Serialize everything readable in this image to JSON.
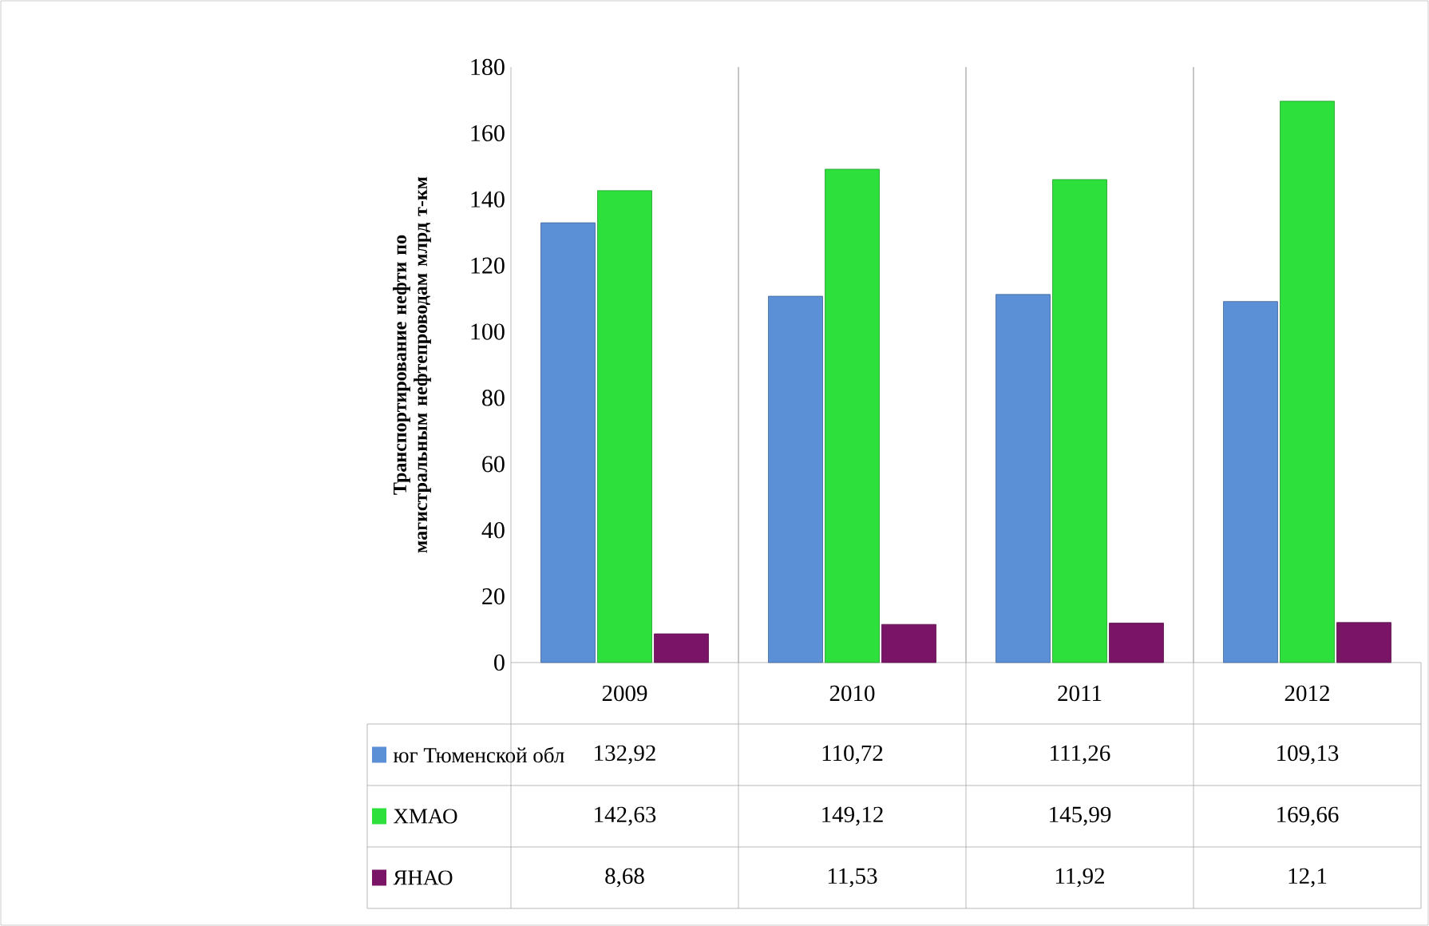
{
  "chart_data": {
    "type": "bar",
    "ylabel": "Транспортирование нефти по магистральным нефтепроводам  млрд т-км",
    "categories": [
      "2009",
      "2010",
      "2011",
      "2012"
    ],
    "series": [
      {
        "name": "юг Тюменской обл",
        "color": "#5b8fd6",
        "values": [
          132.92,
          110.72,
          111.26,
          109.13
        ],
        "value_labels": [
          "132,92",
          "110,72",
          "111,26",
          "109,13"
        ]
      },
      {
        "name": "ХМАО",
        "color": "#2ee03c",
        "values": [
          142.63,
          149.12,
          145.99,
          169.66
        ],
        "value_labels": [
          "142,63",
          "149,12",
          "145,99",
          "169,66"
        ]
      },
      {
        "name": "ЯНАО",
        "color": "#7a1466",
        "values": [
          8.68,
          11.53,
          11.92,
          12.1
        ],
        "value_labels": [
          "8,68",
          "11,53",
          "11,92",
          "12,1"
        ]
      }
    ],
    "ylim": [
      0,
      180
    ],
    "yticks": [
      0,
      20,
      40,
      60,
      80,
      100,
      120,
      140,
      160,
      180
    ],
    "grid": "x",
    "legend": "bottom"
  }
}
